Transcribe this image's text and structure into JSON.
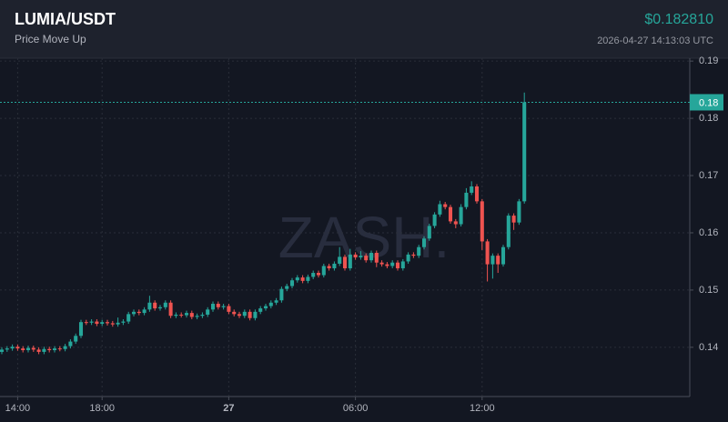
{
  "chart_data": {
    "type": "candlestick",
    "title": "LUMIA/USDT",
    "subtitle": "Price Move Up",
    "price": "$0.182810",
    "timestamp": "2026-04-27 14:13:03 UTC",
    "watermark": "ZASH.",
    "up_color": "#26a69a",
    "down_color": "#ef5350",
    "grid": true,
    "ylim": [
      0.1314,
      0.1905
    ],
    "yticks": [
      0.14,
      0.15,
      0.16,
      0.17,
      0.18,
      0.19
    ],
    "xlim": [
      -0.345,
      130.345
    ],
    "xticks": [
      {
        "value": 3,
        "label": "14:00"
      },
      {
        "value": 19,
        "label": "18:00"
      },
      {
        "value": 43,
        "label": "27"
      },
      {
        "value": 67,
        "label": "06:00"
      },
      {
        "value": 91,
        "label": "12:00"
      }
    ],
    "last_price": {
      "value": 0.1828,
      "label": "0.18"
    },
    "open": [
      0.1392,
      0.1396,
      0.1398,
      0.1401,
      0.1398,
      0.1395,
      0.1399,
      0.1396,
      0.1392,
      0.1397,
      0.1395,
      0.1398,
      0.1397,
      0.1402,
      0.141,
      0.142,
      0.1444,
      0.1443,
      0.1445,
      0.1441,
      0.1444,
      0.1442,
      0.144,
      0.1443,
      0.1445,
      0.1458,
      0.1462,
      0.146,
      0.1466,
      0.1478,
      0.1468,
      0.147,
      0.1478,
      0.1455,
      0.1457,
      0.1456,
      0.146,
      0.1453,
      0.1455,
      0.1457,
      0.1466,
      0.1476,
      0.147,
      0.1472,
      0.1462,
      0.1458,
      0.1455,
      0.1462,
      0.1451,
      0.1462,
      0.1468,
      0.1472,
      0.1478,
      0.1482,
      0.1502,
      0.1507,
      0.1517,
      0.1522,
      0.1516,
      0.1523,
      0.153,
      0.1526,
      0.1542,
      0.1538,
      0.1546,
      0.1558,
      0.1538,
      0.1562,
      0.1557,
      0.156,
      0.1552,
      0.1565,
      0.1548,
      0.1545,
      0.1542,
      0.1548,
      0.1538,
      0.155,
      0.1562,
      0.156,
      0.1575,
      0.159,
      0.1612,
      0.1632,
      0.165,
      0.1645,
      0.162,
      0.1615,
      0.1645,
      0.167,
      0.1681,
      0.1655,
      0.1585,
      0.1545,
      0.156,
      0.1545,
      0.1575,
      0.163,
      0.1618,
      0.1655
    ],
    "high": [
      0.14,
      0.1402,
      0.1405,
      0.1405,
      0.1402,
      0.1403,
      0.1403,
      0.14,
      0.1401,
      0.1401,
      0.1402,
      0.1402,
      0.1406,
      0.1414,
      0.1424,
      0.1448,
      0.1448,
      0.1449,
      0.1449,
      0.1448,
      0.1448,
      0.1446,
      0.1452,
      0.1449,
      0.1462,
      0.1466,
      0.1466,
      0.147,
      0.149,
      0.1482,
      0.1474,
      0.1482,
      0.1482,
      0.1461,
      0.1461,
      0.1464,
      0.1464,
      0.1459,
      0.1461,
      0.147,
      0.148,
      0.148,
      0.1476,
      0.1476,
      0.1466,
      0.1462,
      0.1466,
      0.1466,
      0.1466,
      0.1472,
      0.1476,
      0.1482,
      0.1486,
      0.1506,
      0.1511,
      0.1521,
      0.1526,
      0.1526,
      0.1527,
      0.1534,
      0.1534,
      0.1546,
      0.1546,
      0.155,
      0.1575,
      0.1562,
      0.1572,
      0.1566,
      0.1568,
      0.1564,
      0.1569,
      0.1569,
      0.1552,
      0.1549,
      0.1552,
      0.1552,
      0.1554,
      0.1566,
      0.1566,
      0.1579,
      0.1594,
      0.1616,
      0.1636,
      0.1656,
      0.1654,
      0.1649,
      0.1624,
      0.165,
      0.1678,
      0.169,
      0.1685,
      0.1659,
      0.1589,
      0.1564,
      0.1564,
      0.1579,
      0.1634,
      0.1634,
      0.1659,
      0.1845
    ],
    "low": [
      0.1388,
      0.1392,
      0.1394,
      0.1394,
      0.1391,
      0.1391,
      0.1392,
      0.1388,
      0.1388,
      0.1391,
      0.1391,
      0.1393,
      0.1393,
      0.1398,
      0.1406,
      0.1416,
      0.1439,
      0.1439,
      0.1437,
      0.1437,
      0.1438,
      0.1436,
      0.1436,
      0.1439,
      0.1441,
      0.1454,
      0.1456,
      0.1456,
      0.1462,
      0.1464,
      0.1464,
      0.1466,
      0.1451,
      0.1451,
      0.1452,
      0.1452,
      0.1449,
      0.1449,
      0.1451,
      0.1453,
      0.1462,
      0.1466,
      0.1466,
      0.1458,
      0.1454,
      0.1451,
      0.1451,
      0.1447,
      0.1447,
      0.1458,
      0.1464,
      0.1468,
      0.1474,
      0.1478,
      0.1498,
      0.1503,
      0.1513,
      0.1512,
      0.1512,
      0.1519,
      0.1522,
      0.1522,
      0.1534,
      0.1534,
      0.1542,
      0.1534,
      0.1534,
      0.1553,
      0.1553,
      0.1548,
      0.1548,
      0.154,
      0.1541,
      0.1538,
      0.1538,
      0.1534,
      0.1534,
      0.1546,
      0.1556,
      0.1556,
      0.1571,
      0.1586,
      0.1608,
      0.1628,
      0.1641,
      0.1616,
      0.1608,
      0.1611,
      0.1641,
      0.1666,
      0.1651,
      0.157,
      0.1515,
      0.152,
      0.153,
      0.1541,
      0.1571,
      0.1605,
      0.1614,
      0.1651
    ],
    "close": [
      0.1396,
      0.1398,
      0.1401,
      0.1398,
      0.1395,
      0.1399,
      0.1396,
      0.1392,
      0.1397,
      0.1395,
      0.1398,
      0.1397,
      0.1402,
      0.141,
      0.142,
      0.1444,
      0.1443,
      0.1445,
      0.1441,
      0.1444,
      0.1442,
      0.144,
      0.1443,
      0.1445,
      0.1458,
      0.1462,
      0.146,
      0.1466,
      0.1478,
      0.1468,
      0.147,
      0.1478,
      0.1455,
      0.1457,
      0.1456,
      0.146,
      0.1453,
      0.1455,
      0.1457,
      0.1466,
      0.1476,
      0.147,
      0.1472,
      0.1462,
      0.1458,
      0.1455,
      0.1462,
      0.1451,
      0.1462,
      0.1468,
      0.1472,
      0.1478,
      0.1482,
      0.1502,
      0.1507,
      0.1517,
      0.1522,
      0.1516,
      0.1523,
      0.153,
      0.1526,
      0.1542,
      0.1538,
      0.1546,
      0.1558,
      0.1538,
      0.1562,
      0.1557,
      0.156,
      0.1552,
      0.1565,
      0.1548,
      0.1545,
      0.1542,
      0.1548,
      0.1538,
      0.155,
      0.1562,
      0.156,
      0.1575,
      0.159,
      0.1612,
      0.1632,
      0.165,
      0.1645,
      0.162,
      0.1615,
      0.1645,
      0.167,
      0.1681,
      0.1655,
      0.1585,
      0.1545,
      0.156,
      0.1545,
      0.1575,
      0.163,
      0.1618,
      0.1655,
      0.1828
    ]
  }
}
